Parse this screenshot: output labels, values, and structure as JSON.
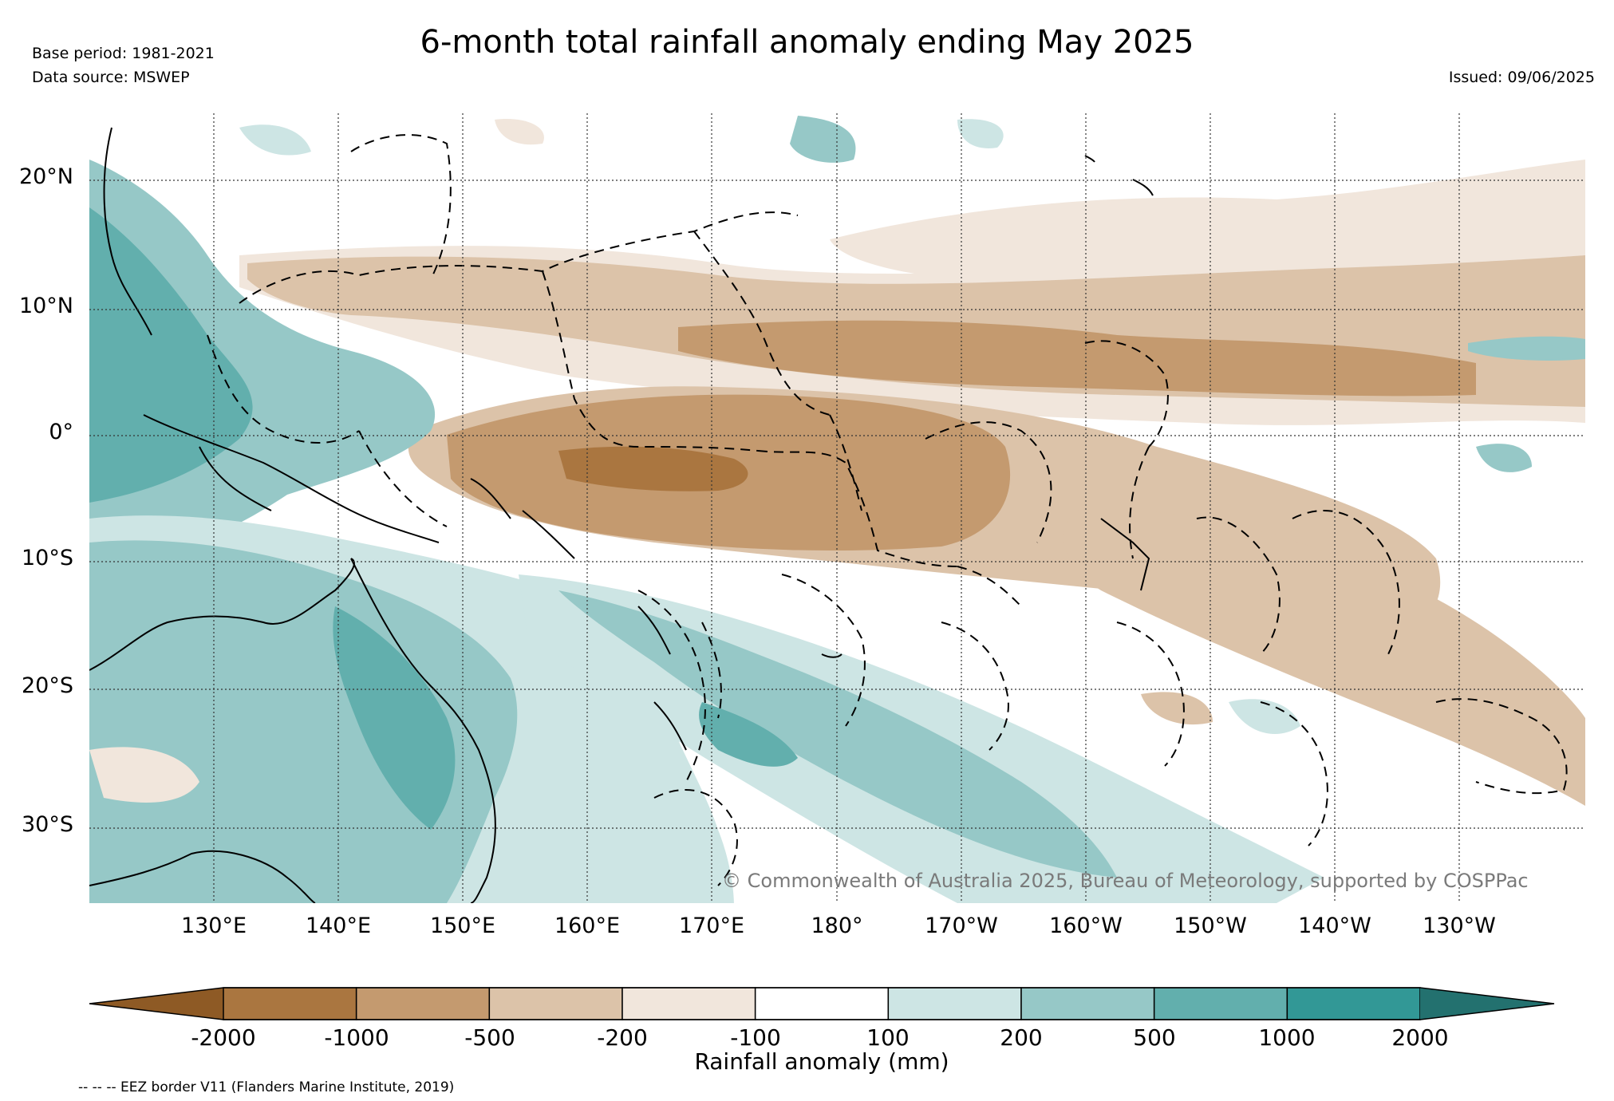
{
  "title": "6-month total rainfall anomaly ending May 2025",
  "base_period": "Base period: 1981-2021",
  "data_source": "Data source: MSWEP",
  "issued": "Issued: 09/06/2025",
  "credit": "© Commonwealth of Australia 2025, Bureau of Meteorology, supported by COSPPac",
  "lon_labels": [
    "130°E",
    "140°E",
    "150°E",
    "160°E",
    "170°E",
    "180°",
    "170°W",
    "160°W",
    "150°W",
    "140°W",
    "130°W"
  ],
  "lat_labels": [
    "20°N",
    "10°N",
    "0°",
    "10°S",
    "20°S",
    "30°S"
  ],
  "colorbar": {
    "title": "Rainfall anomaly (mm)",
    "ticks": [
      "-2000",
      "-1000",
      "-500",
      "-200",
      "-100",
      "100",
      "200",
      "500",
      "1000",
      "2000"
    ],
    "colors": [
      "#8e5a25",
      "#aa7640",
      "#c49a6f",
      "#dcc3a9",
      "#f1e6dc",
      "#ffffff",
      "#cde5e4",
      "#96c8c7",
      "#62afad",
      "#329896",
      "#23716f"
    ]
  },
  "footnote": "-- -- -- EEZ border V11 (Flanders Marine Institute, 2019)"
}
